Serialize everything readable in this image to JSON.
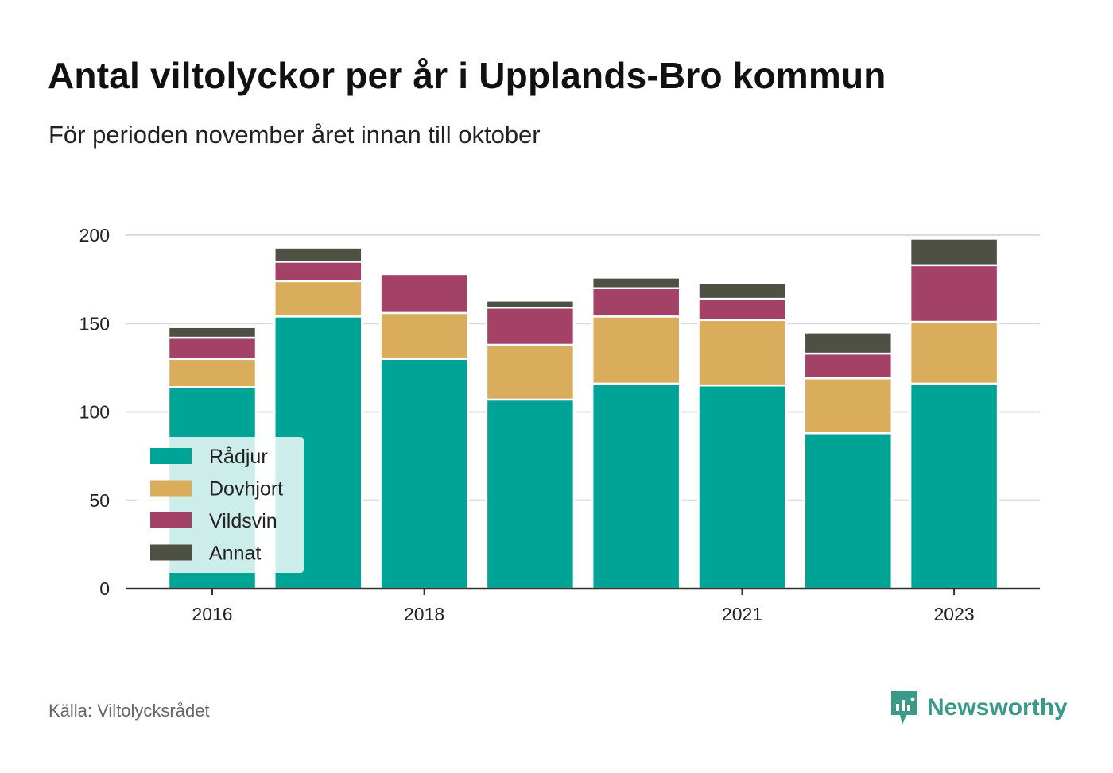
{
  "title": "Antal viltolyckor per år i Upplands-Bro kommun",
  "subtitle": "För perioden november året innan till oktober",
  "source": "Källa: Viltolycksrådet",
  "brand": "Newsworthy",
  "chart_data": {
    "type": "bar",
    "stacked": true,
    "years": [
      2016,
      2017,
      2018,
      2019,
      2020,
      2021,
      2022,
      2023
    ],
    "x_tick_labels": [
      "2016",
      "2018",
      "2021",
      "2023"
    ],
    "y_ticks": [
      0,
      50,
      100,
      150,
      200
    ],
    "ylim": [
      0,
      200
    ],
    "grid": true,
    "legend_position": "bottom-left",
    "series": [
      {
        "name": "Rådjur",
        "color": "#00a497",
        "values": [
          114,
          154,
          130,
          107,
          116,
          115,
          88,
          116
        ]
      },
      {
        "name": "Dovhjort",
        "color": "#d9ad5b",
        "values": [
          16,
          20,
          26,
          31,
          38,
          37,
          31,
          35
        ]
      },
      {
        "name": "Vildsvin",
        "color": "#a34167",
        "values": [
          12,
          11,
          22,
          21,
          16,
          12,
          14,
          32
        ]
      },
      {
        "name": "Annat",
        "color": "#4e5043",
        "values": [
          6,
          8,
          0,
          4,
          6,
          9,
          12,
          15
        ]
      }
    ]
  }
}
